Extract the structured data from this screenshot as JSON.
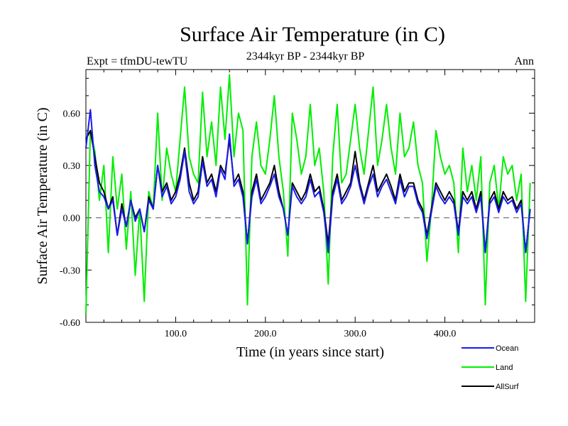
{
  "chart_data": {
    "type": "line",
    "title": "Surface Air Temperature (in C)",
    "subtitle": "2344kyr BP - 2344kyr BP",
    "left_label": "Expt = tfmDU-tewTU",
    "right_label": "Ann",
    "xlabel": "Time (in years since start)",
    "ylabel": "Surface Air Temperature (in C)",
    "xlim": [
      0,
      500
    ],
    "ylim": [
      -0.6,
      0.85
    ],
    "x_ticks": [
      {
        "value": 100,
        "label": "100.0"
      },
      {
        "value": 200,
        "label": "200.0"
      },
      {
        "value": 300,
        "label": "300.0"
      },
      {
        "value": 400,
        "label": "400.0"
      }
    ],
    "y_ticks": [
      {
        "value": -0.6,
        "label": "-0.60"
      },
      {
        "value": -0.3,
        "label": "-0.30"
      },
      {
        "value": 0.0,
        "label": "0.00"
      },
      {
        "value": 0.3,
        "label": "0.30"
      },
      {
        "value": 0.6,
        "label": "0.60"
      }
    ],
    "reference_line": 0.0,
    "x_step": 5,
    "series": [
      {
        "name": "Land",
        "color": "#00ee00",
        "values": [
          -0.55,
          0.5,
          0.38,
          0.1,
          0.3,
          -0.2,
          0.35,
          0.05,
          0.25,
          -0.18,
          0.15,
          -0.33,
          0.05,
          -0.48,
          0.15,
          0.05,
          0.6,
          0.1,
          0.4,
          0.25,
          0.15,
          0.45,
          0.75,
          0.35,
          0.25,
          0.2,
          0.72,
          0.35,
          0.55,
          0.3,
          0.75,
          0.45,
          0.82,
          0.35,
          0.6,
          0.5,
          -0.5,
          0.35,
          0.55,
          0.3,
          0.25,
          0.45,
          0.7,
          0.35,
          0.15,
          -0.22,
          0.6,
          0.45,
          0.25,
          0.35,
          0.65,
          0.3,
          0.4,
          0.15,
          -0.38,
          0.35,
          0.65,
          0.2,
          0.25,
          0.45,
          0.65,
          0.4,
          0.25,
          0.5,
          0.75,
          0.3,
          0.45,
          0.65,
          0.4,
          0.25,
          0.6,
          0.35,
          0.4,
          0.55,
          0.3,
          0.2,
          -0.25,
          0.05,
          0.5,
          0.35,
          0.25,
          0.3,
          0.2,
          -0.2,
          0.4,
          0.15,
          0.3,
          0.1,
          0.35,
          -0.5,
          0.2,
          0.3,
          0.05,
          0.35,
          0.25,
          0.3,
          0.1,
          0.25,
          -0.48,
          0.2
        ]
      },
      {
        "name": "AllSurf",
        "color": "#000000",
        "values": [
          0.45,
          0.5,
          0.35,
          0.2,
          0.15,
          0.05,
          0.12,
          -0.1,
          0.08,
          -0.05,
          0.1,
          0.0,
          0.05,
          -0.08,
          0.12,
          0.05,
          0.3,
          0.15,
          0.2,
          0.1,
          0.15,
          0.25,
          0.4,
          0.2,
          0.1,
          0.15,
          0.35,
          0.2,
          0.25,
          0.15,
          0.3,
          0.25,
          0.45,
          0.2,
          0.25,
          0.15,
          -0.15,
          0.15,
          0.25,
          0.1,
          0.15,
          0.2,
          0.3,
          0.15,
          0.05,
          -0.1,
          0.2,
          0.15,
          0.1,
          0.15,
          0.25,
          0.15,
          0.18,
          0.05,
          -0.15,
          0.15,
          0.25,
          0.1,
          0.15,
          0.2,
          0.38,
          0.2,
          0.1,
          0.2,
          0.3,
          0.15,
          0.2,
          0.25,
          0.18,
          0.1,
          0.25,
          0.15,
          0.2,
          0.2,
          0.1,
          0.05,
          -0.1,
          0.05,
          0.2,
          0.15,
          0.1,
          0.15,
          0.1,
          -0.08,
          0.15,
          0.1,
          0.15,
          0.05,
          0.15,
          -0.2,
          0.1,
          0.15,
          0.05,
          0.15,
          0.1,
          0.12,
          0.05,
          0.1,
          -0.2,
          0.05
        ]
      },
      {
        "name": "Ocean",
        "color": "#1a1aee",
        "values": [
          0.4,
          0.62,
          0.3,
          0.15,
          0.12,
          0.05,
          0.1,
          -0.1,
          0.05,
          -0.05,
          0.1,
          -0.02,
          0.05,
          -0.08,
          0.1,
          0.05,
          0.3,
          0.12,
          0.18,
          0.08,
          0.12,
          0.22,
          0.38,
          0.15,
          0.08,
          0.12,
          0.32,
          0.18,
          0.22,
          0.12,
          0.28,
          0.22,
          0.48,
          0.18,
          0.22,
          0.12,
          -0.15,
          0.12,
          0.22,
          0.08,
          0.12,
          0.18,
          0.25,
          0.12,
          0.05,
          -0.1,
          0.18,
          0.12,
          0.08,
          0.12,
          0.22,
          0.12,
          0.15,
          0.03,
          -0.2,
          0.12,
          0.22,
          0.08,
          0.12,
          0.18,
          0.3,
          0.18,
          0.08,
          0.18,
          0.25,
          0.12,
          0.18,
          0.22,
          0.15,
          0.08,
          0.22,
          0.12,
          0.18,
          0.18,
          0.08,
          0.03,
          -0.12,
          0.03,
          0.18,
          0.12,
          0.08,
          0.12,
          0.08,
          -0.1,
          0.12,
          0.08,
          0.12,
          0.03,
          0.12,
          -0.2,
          0.08,
          0.12,
          0.03,
          0.12,
          0.08,
          0.1,
          0.03,
          0.08,
          -0.2,
          0.05
        ]
      }
    ],
    "legend": [
      {
        "name": "Ocean",
        "color": "#1a1aee"
      },
      {
        "name": "Land",
        "color": "#00ee00"
      },
      {
        "name": "AllSurf",
        "color": "#000000"
      }
    ],
    "legend_position": "bottom-right"
  }
}
